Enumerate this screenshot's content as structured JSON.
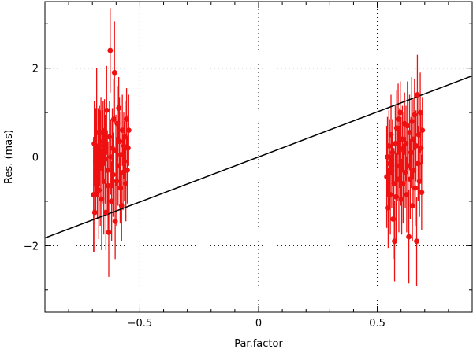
{
  "chart_data": {
    "type": "scatter",
    "title": "",
    "xlabel": "Par.factor",
    "ylabel": "Res. (mas)",
    "xlim": [
      -0.9,
      0.9
    ],
    "ylim": [
      -3.5,
      3.5
    ],
    "grid": true,
    "xticks": [
      -0.5,
      0,
      0.5
    ],
    "yticks": [
      -2,
      0,
      2
    ],
    "xtick_labels": [
      "−0.5",
      "0",
      "0.5"
    ],
    "ytick_labels": [
      "−2",
      "0",
      "2"
    ],
    "colors": {
      "points": "#ee1111",
      "line": "#000000",
      "grid": "#000000"
    },
    "fit_line": {
      "slope": 2.03,
      "intercept": 0.0
    },
    "series": [
      {
        "points": [
          {
            "x": -0.695,
            "y": -0.85,
            "err": 1.3
          },
          {
            "x": -0.692,
            "y": 0.3,
            "err": 0.95
          },
          {
            "x": -0.69,
            "y": -1.25,
            "err": 0.9
          },
          {
            "x": -0.686,
            "y": -0.1,
            "err": 1.2
          },
          {
            "x": -0.682,
            "y": 0.55,
            "err": 1.45
          },
          {
            "x": -0.679,
            "y": -0.55,
            "err": 0.85
          },
          {
            "x": -0.676,
            "y": 0.1,
            "err": 1.0
          },
          {
            "x": -0.673,
            "y": -0.75,
            "err": 1.1
          },
          {
            "x": -0.67,
            "y": 0.25,
            "err": 0.9
          },
          {
            "x": -0.667,
            "y": -0.25,
            "err": 1.3
          },
          {
            "x": -0.664,
            "y": 0.55,
            "err": 0.8
          },
          {
            "x": -0.661,
            "y": -0.95,
            "err": 1.15
          },
          {
            "x": -0.658,
            "y": 0.0,
            "err": 1.05
          },
          {
            "x": -0.655,
            "y": 0.35,
            "err": 0.9
          },
          {
            "x": -0.652,
            "y": -0.55,
            "err": 1.2
          },
          {
            "x": -0.649,
            "y": 0.55,
            "err": 0.75
          },
          {
            "x": -0.646,
            "y": -0.05,
            "err": 1.0
          },
          {
            "x": -0.643,
            "y": -1.25,
            "err": 0.85
          },
          {
            "x": -0.64,
            "y": 1.05,
            "err": 1.0
          },
          {
            "x": -0.637,
            "y": -0.3,
            "err": 0.9
          },
          {
            "x": -0.634,
            "y": -0.65,
            "err": 1.0
          },
          {
            "x": -0.631,
            "y": -1.7,
            "err": 1.0
          },
          {
            "x": -0.628,
            "y": 0.45,
            "err": 0.8
          },
          {
            "x": -0.625,
            "y": 2.4,
            "err": 0.95
          },
          {
            "x": -0.622,
            "y": 0.0,
            "err": 0.85
          },
          {
            "x": -0.619,
            "y": -1.0,
            "err": 0.9
          },
          {
            "x": -0.616,
            "y": 0.2,
            "err": 0.9
          },
          {
            "x": -0.613,
            "y": -0.4,
            "err": 0.95
          },
          {
            "x": -0.61,
            "y": 0.85,
            "err": 0.9
          },
          {
            "x": -0.607,
            "y": 1.9,
            "err": 1.15
          },
          {
            "x": -0.604,
            "y": -1.45,
            "err": 0.85
          },
          {
            "x": -0.601,
            "y": 0.15,
            "err": 0.8
          },
          {
            "x": -0.598,
            "y": -0.55,
            "err": 1.0
          },
          {
            "x": -0.595,
            "y": 0.75,
            "err": 0.85
          },
          {
            "x": -0.592,
            "y": -0.2,
            "err": 0.9
          },
          {
            "x": -0.589,
            "y": 1.1,
            "err": 0.7
          },
          {
            "x": -0.586,
            "y": 0.35,
            "err": 1.0
          },
          {
            "x": -0.583,
            "y": -0.7,
            "err": 0.8
          },
          {
            "x": -0.58,
            "y": 0.05,
            "err": 0.95
          },
          {
            "x": -0.577,
            "y": -1.1,
            "err": 0.8
          },
          {
            "x": -0.574,
            "y": 0.6,
            "err": 0.8
          },
          {
            "x": -0.571,
            "y": -0.35,
            "err": 0.85
          },
          {
            "x": -0.568,
            "y": 0.25,
            "err": 0.75
          },
          {
            "x": -0.565,
            "y": -0.1,
            "err": 0.9
          },
          {
            "x": -0.562,
            "y": 0.45,
            "err": 0.8
          },
          {
            "x": -0.559,
            "y": -0.6,
            "err": 0.85
          },
          {
            "x": -0.556,
            "y": 0.85,
            "err": 0.7
          },
          {
            "x": -0.553,
            "y": -0.3,
            "err": 0.75
          },
          {
            "x": -0.55,
            "y": 0.2,
            "err": 0.75
          },
          {
            "x": -0.547,
            "y": 0.6,
            "err": 0.8
          },
          {
            "x": 0.54,
            "y": -0.45,
            "err": 1.15
          },
          {
            "x": 0.543,
            "y": 0.0,
            "err": 0.9
          },
          {
            "x": 0.546,
            "y": -1.15,
            "err": 0.9
          },
          {
            "x": 0.549,
            "y": 0.25,
            "err": 0.8
          },
          {
            "x": 0.552,
            "y": -0.15,
            "err": 1.0
          },
          {
            "x": 0.555,
            "y": -0.85,
            "err": 0.9
          },
          {
            "x": 0.558,
            "y": 0.5,
            "err": 0.9
          },
          {
            "x": 0.561,
            "y": -0.3,
            "err": 0.85
          },
          {
            "x": 0.564,
            "y": 0.1,
            "err": 0.75
          },
          {
            "x": 0.567,
            "y": -1.4,
            "err": 0.9
          },
          {
            "x": 0.57,
            "y": -0.6,
            "err": 0.8
          },
          {
            "x": 0.573,
            "y": -1.9,
            "err": 0.9
          },
          {
            "x": 0.576,
            "y": 0.3,
            "err": 0.85
          },
          {
            "x": 0.579,
            "y": -0.9,
            "err": 1.0
          },
          {
            "x": 0.582,
            "y": 0.65,
            "err": 0.85
          },
          {
            "x": 0.585,
            "y": -0.2,
            "err": 0.8
          },
          {
            "x": 0.588,
            "y": 0.85,
            "err": 0.8
          },
          {
            "x": 0.591,
            "y": -0.5,
            "err": 1.2
          },
          {
            "x": 0.594,
            "y": 0.2,
            "err": 0.9
          },
          {
            "x": 0.597,
            "y": 1.0,
            "err": 0.7
          },
          {
            "x": 0.6,
            "y": -0.1,
            "err": 1.0
          },
          {
            "x": 0.603,
            "y": -0.95,
            "err": 0.8
          },
          {
            "x": 0.606,
            "y": 0.4,
            "err": 0.75
          },
          {
            "x": 0.609,
            "y": -0.6,
            "err": 0.9
          },
          {
            "x": 0.612,
            "y": 0.15,
            "err": 0.85
          },
          {
            "x": 0.615,
            "y": 0.75,
            "err": 0.7
          },
          {
            "x": 0.618,
            "y": -0.35,
            "err": 0.8
          },
          {
            "x": 0.621,
            "y": 0.3,
            "err": 0.85
          },
          {
            "x": 0.624,
            "y": -0.85,
            "err": 0.85
          },
          {
            "x": 0.627,
            "y": 0.7,
            "err": 1.0
          },
          {
            "x": 0.63,
            "y": -0.2,
            "err": 0.8
          },
          {
            "x": 0.633,
            "y": -1.8,
            "err": 1.05
          },
          {
            "x": 0.636,
            "y": 0.55,
            "err": 0.85
          },
          {
            "x": 0.639,
            "y": -0.5,
            "err": 0.9
          },
          {
            "x": 0.642,
            "y": 0.1,
            "err": 0.8
          },
          {
            "x": 0.645,
            "y": 0.8,
            "err": 1.0
          },
          {
            "x": 0.648,
            "y": -1.1,
            "err": 0.8
          },
          {
            "x": 0.651,
            "y": 0.4,
            "err": 0.9
          },
          {
            "x": 0.654,
            "y": -0.3,
            "err": 0.75
          },
          {
            "x": 0.657,
            "y": 0.95,
            "err": 0.8
          },
          {
            "x": 0.66,
            "y": -0.7,
            "err": 0.85
          },
          {
            "x": 0.663,
            "y": 0.25,
            "err": 0.8
          },
          {
            "x": 0.666,
            "y": -1.9,
            "err": 1.0
          },
          {
            "x": 0.669,
            "y": 1.4,
            "err": 0.9
          },
          {
            "x": 0.672,
            "y": -0.15,
            "err": 0.85
          },
          {
            "x": 0.675,
            "y": 0.5,
            "err": 0.85
          },
          {
            "x": 0.678,
            "y": -0.55,
            "err": 0.8
          },
          {
            "x": 0.681,
            "y": 1.0,
            "err": 0.9
          },
          {
            "x": 0.684,
            "y": 0.2,
            "err": 0.8
          },
          {
            "x": 0.687,
            "y": -0.8,
            "err": 0.85
          },
          {
            "x": 0.69,
            "y": 0.6,
            "err": 0.75
          }
        ]
      }
    ]
  }
}
